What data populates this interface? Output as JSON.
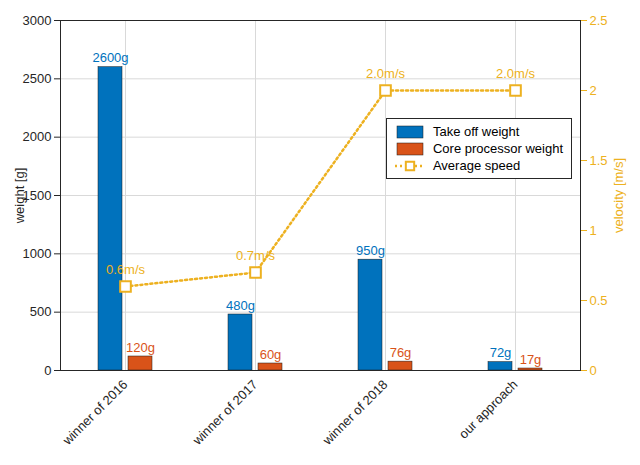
{
  "chart_data": {
    "type": "bar",
    "categories": [
      "winner of 2016",
      "winner of 2017",
      "winner of 2018",
      "our approach"
    ],
    "ylabel": "weight [g]",
    "y2label": "velocity [m/s]",
    "ylim": [
      0,
      3000
    ],
    "yticks": [
      0,
      500,
      1000,
      1500,
      2000,
      2500,
      3000
    ],
    "y2lim": [
      0,
      2.5
    ],
    "y2ticks": [
      0,
      0.5,
      1,
      1.5,
      2,
      2.5
    ],
    "grid": true,
    "legend": "right",
    "data_labels": true,
    "series": [
      {
        "name": "Take off weight",
        "type": "bar",
        "color": "#0072BD",
        "values": [
          2600,
          480,
          950,
          72
        ],
        "value_labels": [
          "2600g",
          "480g",
          "950g",
          "72g"
        ]
      },
      {
        "name": "Core processor weight",
        "type": "bar",
        "color": "#D95319",
        "values": [
          120,
          60,
          76,
          17
        ],
        "value_labels": [
          "120g",
          "60g",
          "76g",
          "17g"
        ]
      },
      {
        "name": "Average speed",
        "type": "line",
        "axis": "y2",
        "color": "#EDB120",
        "marker": "square",
        "line_style": "dotted",
        "values": [
          0.6,
          0.7,
          2,
          2
        ],
        "value_labels": [
          "0.6m/s",
          "0.7m/s",
          "2.0m/s",
          "2.0m/s"
        ]
      }
    ]
  }
}
